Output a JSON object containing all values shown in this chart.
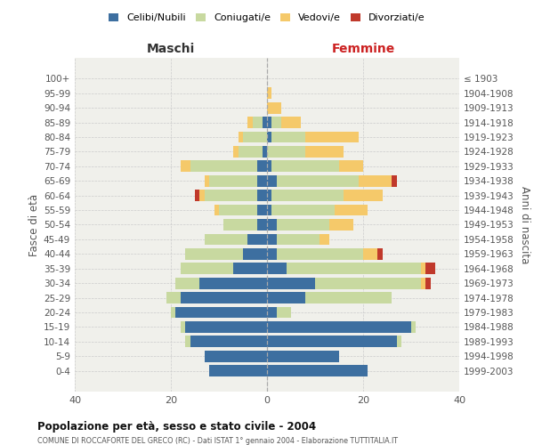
{
  "age_groups": [
    "0-4",
    "5-9",
    "10-14",
    "15-19",
    "20-24",
    "25-29",
    "30-34",
    "35-39",
    "40-44",
    "45-49",
    "50-54",
    "55-59",
    "60-64",
    "65-69",
    "70-74",
    "75-79",
    "80-84",
    "85-89",
    "90-94",
    "95-99",
    "100+"
  ],
  "birth_years": [
    "1999-2003",
    "1994-1998",
    "1989-1993",
    "1984-1988",
    "1979-1983",
    "1974-1978",
    "1969-1973",
    "1964-1968",
    "1959-1963",
    "1954-1958",
    "1949-1953",
    "1944-1948",
    "1939-1943",
    "1934-1938",
    "1929-1933",
    "1924-1928",
    "1919-1923",
    "1914-1918",
    "1909-1913",
    "1904-1908",
    "≤ 1903"
  ],
  "maschi": {
    "celibe": [
      12,
      13,
      16,
      17,
      19,
      18,
      14,
      7,
      5,
      4,
      2,
      2,
      2,
      2,
      2,
      1,
      0,
      1,
      0,
      0,
      0
    ],
    "coniugato": [
      0,
      0,
      1,
      1,
      1,
      3,
      5,
      11,
      12,
      9,
      7,
      8,
      11,
      10,
      14,
      5,
      5,
      2,
      0,
      0,
      0
    ],
    "vedovo": [
      0,
      0,
      0,
      0,
      0,
      0,
      0,
      0,
      0,
      0,
      0,
      1,
      1,
      1,
      2,
      1,
      1,
      1,
      0,
      0,
      0
    ],
    "divorziato": [
      0,
      0,
      0,
      0,
      0,
      0,
      0,
      0,
      0,
      0,
      0,
      0,
      1,
      0,
      0,
      0,
      0,
      0,
      0,
      0,
      0
    ]
  },
  "femmine": {
    "nubile": [
      21,
      15,
      27,
      30,
      2,
      8,
      10,
      4,
      2,
      2,
      2,
      1,
      1,
      2,
      1,
      0,
      1,
      1,
      0,
      0,
      0
    ],
    "coniugata": [
      0,
      0,
      1,
      1,
      3,
      18,
      22,
      28,
      18,
      9,
      11,
      13,
      15,
      17,
      14,
      8,
      7,
      2,
      0,
      0,
      0
    ],
    "vedova": [
      0,
      0,
      0,
      0,
      0,
      0,
      1,
      1,
      3,
      2,
      5,
      7,
      8,
      7,
      5,
      8,
      11,
      4,
      3,
      1,
      0
    ],
    "divorziata": [
      0,
      0,
      0,
      0,
      0,
      0,
      1,
      2,
      1,
      0,
      0,
      0,
      0,
      1,
      0,
      0,
      0,
      0,
      0,
      0,
      0
    ]
  },
  "color_celibe": "#3d6fa0",
  "color_coniugato": "#c8d9a0",
  "color_vedovo": "#f5c96a",
  "color_divorziato": "#c0392b",
  "title": "Popolazione per età, sesso e stato civile - 2004",
  "subtitle": "COMUNE DI ROCCAFORTE DEL GRECO (RC) - Dati ISTAT 1° gennaio 2004 - Elaborazione TUTTITALIA.IT",
  "xlabel_left": "Maschi",
  "xlabel_right": "Femmine",
  "ylabel_left": "Fasce di età",
  "ylabel_right": "Anni di nascita",
  "xlim": 40,
  "legend_labels": [
    "Celibi/Nubili",
    "Coniugati/e",
    "Vedovi/e",
    "Divorziati/e"
  ],
  "bg_color": "#f0f0eb"
}
